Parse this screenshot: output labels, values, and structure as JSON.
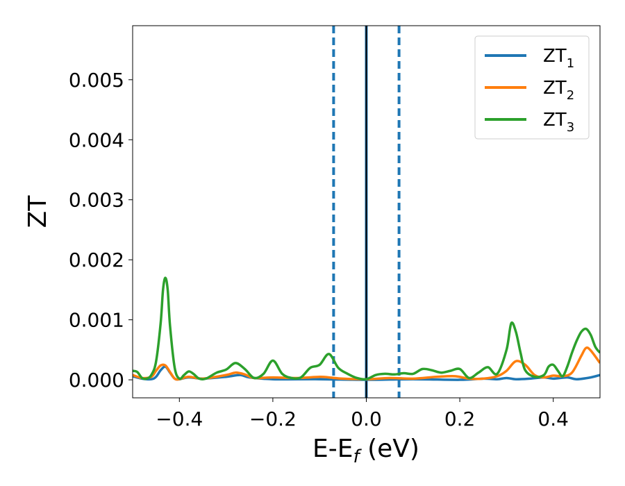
{
  "chart_data": {
    "type": "line",
    "title": "",
    "xlabel": {
      "main": "E-E",
      "sub": "f",
      "unit": " (eV)"
    },
    "ylabel": "ZT",
    "xlim": [
      -0.5,
      0.5
    ],
    "ylim": [
      -0.0003,
      0.0059
    ],
    "xticks": [
      -0.4,
      -0.2,
      0.0,
      0.2,
      0.4
    ],
    "xtick_labels": [
      "−0.4",
      "−0.2",
      "0.0",
      "0.2",
      "0.4"
    ],
    "yticks": [
      0.0,
      0.001,
      0.002,
      0.003,
      0.004,
      0.005
    ],
    "ytick_labels": [
      "0.000",
      "0.001",
      "0.002",
      "0.003",
      "0.004",
      "0.005"
    ],
    "grid": false,
    "legend_position": "top-right",
    "vlines": [
      {
        "x": -0.07,
        "style": "dashed",
        "color": "#1f77b4"
      },
      {
        "x": 0.0,
        "style": "solid",
        "color": "#1f77b4"
      },
      {
        "x": 0.0,
        "style": "solid",
        "color": "#000000"
      },
      {
        "x": 0.07,
        "style": "dashed",
        "color": "#1f77b4"
      }
    ],
    "series": [
      {
        "name": "ZT",
        "sub": "1",
        "color": "#1f77b4",
        "x": [
          -0.5,
          -0.48,
          -0.46,
          -0.45,
          -0.44,
          -0.43,
          -0.42,
          -0.41,
          -0.4,
          -0.38,
          -0.35,
          -0.3,
          -0.27,
          -0.25,
          -0.2,
          -0.1,
          0.0,
          0.1,
          0.2,
          0.25,
          0.28,
          0.3,
          0.32,
          0.35,
          0.38,
          0.4,
          0.43,
          0.45,
          0.48,
          0.5
        ],
        "y": [
          6e-05,
          2e-05,
          1e-05,
          5e-05,
          0.00016,
          0.00022,
          0.00012,
          2e-05,
          1e-05,
          4e-05,
          2e-05,
          5e-05,
          8e-05,
          4e-05,
          1e-05,
          1e-05,
          0.0,
          1e-05,
          0.0,
          2e-05,
          1e-05,
          3e-05,
          1e-05,
          2e-05,
          4e-05,
          2e-05,
          4e-05,
          1e-05,
          4e-05,
          8e-05
        ]
      },
      {
        "name": "ZT",
        "sub": "2",
        "color": "#ff7f0e",
        "x": [
          -0.5,
          -0.48,
          -0.46,
          -0.45,
          -0.44,
          -0.43,
          -0.42,
          -0.41,
          -0.4,
          -0.38,
          -0.35,
          -0.3,
          -0.28,
          -0.26,
          -0.24,
          -0.2,
          -0.15,
          -0.1,
          -0.08,
          -0.05,
          0.0,
          0.05,
          0.1,
          0.15,
          0.19,
          0.22,
          0.25,
          0.28,
          0.3,
          0.32,
          0.34,
          0.36,
          0.38,
          0.4,
          0.42,
          0.44,
          0.46,
          0.47,
          0.48,
          0.5
        ],
        "y": [
          8e-05,
          3e-05,
          5e-05,
          0.00015,
          0.00024,
          0.00024,
          0.00013,
          2e-05,
          1e-05,
          5e-05,
          2e-05,
          8e-05,
          0.00012,
          9e-05,
          3e-05,
          4e-05,
          3e-05,
          5e-05,
          4e-05,
          2e-05,
          1e-05,
          3e-05,
          2e-05,
          5e-05,
          6e-05,
          2e-05,
          2e-05,
          6e-05,
          0.00015,
          0.00031,
          0.00025,
          8e-05,
          4e-05,
          7e-05,
          6e-05,
          0.00012,
          0.0004,
          0.00053,
          0.00049,
          0.00028
        ]
      },
      {
        "name": "ZT",
        "sub": "3",
        "color": "#2ca02c",
        "x": [
          -0.5,
          -0.49,
          -0.48,
          -0.47,
          -0.46,
          -0.45,
          -0.44,
          -0.435,
          -0.43,
          -0.425,
          -0.42,
          -0.41,
          -0.4,
          -0.39,
          -0.38,
          -0.37,
          -0.36,
          -0.35,
          -0.34,
          -0.32,
          -0.3,
          -0.28,
          -0.26,
          -0.24,
          -0.22,
          -0.2,
          -0.18,
          -0.16,
          -0.14,
          -0.12,
          -0.1,
          -0.08,
          -0.06,
          -0.04,
          -0.02,
          0.0,
          0.02,
          0.04,
          0.06,
          0.08,
          0.1,
          0.12,
          0.14,
          0.16,
          0.18,
          0.2,
          0.22,
          0.24,
          0.26,
          0.28,
          0.3,
          0.31,
          0.32,
          0.33,
          0.34,
          0.36,
          0.38,
          0.39,
          0.4,
          0.41,
          0.42,
          0.43,
          0.44,
          0.45,
          0.46,
          0.47,
          0.48,
          0.49,
          0.5
        ],
        "y": [
          0.00015,
          0.00013,
          3e-05,
          2e-05,
          8e-05,
          0.0003,
          0.00095,
          0.0015,
          0.0017,
          0.0015,
          0.0009,
          0.0002,
          2e-05,
          8e-05,
          0.00014,
          0.0001,
          3e-05,
          1e-05,
          3e-05,
          0.00012,
          0.00017,
          0.00028,
          0.00018,
          3e-05,
          0.0001,
          0.00032,
          0.0001,
          3e-05,
          4e-05,
          0.0002,
          0.00025,
          0.00043,
          0.0002,
          0.0001,
          3e-05,
          1e-05,
          8e-05,
          0.0001,
          9e-05,
          0.00011,
          0.0001,
          0.00018,
          0.00016,
          0.00012,
          0.00015,
          0.00018,
          3e-05,
          0.00012,
          0.00021,
          0.0001,
          0.0005,
          0.00094,
          0.0008,
          0.00045,
          0.00016,
          5e-05,
          8e-05,
          0.00022,
          0.00025,
          0.00015,
          6e-05,
          0.00022,
          0.00045,
          0.00065,
          0.0008,
          0.00085,
          0.00075,
          0.00055,
          0.00045
        ]
      }
    ]
  }
}
